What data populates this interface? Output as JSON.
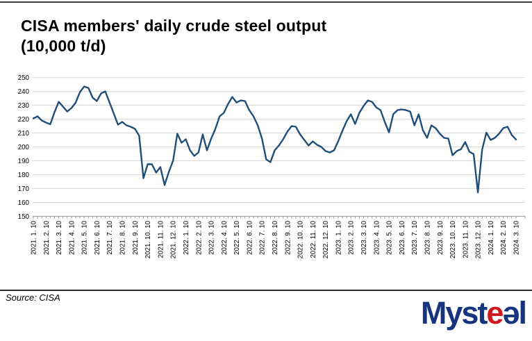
{
  "header": {
    "title_line1": "CISA members' daily crude steel output",
    "title_line2": "(10,000 t/d)"
  },
  "chart_data": {
    "type": "line",
    "title": "CISA members' daily crude steel output (10,000 t/d)",
    "xlabel": "",
    "ylabel": "",
    "ylim": [
      150,
      250
    ],
    "ytick_step": 10,
    "grid": true,
    "legend_position": "none",
    "points_per_month": 3,
    "line_color": "#1f4e79",
    "colors": {
      "grid": "#d9d9d9",
      "axis": "#999999",
      "label": "#000000"
    },
    "categories": [
      "2021. 1. 10",
      "2021. 2. 10",
      "2021. 3. 10",
      "2021. 4. 10",
      "2021. 5. 10",
      "2021. 6. 10",
      "2021. 7. 10",
      "2021. 8. 10",
      "2021. 9. 10",
      "2021. 10. 10",
      "2021. 11. 10",
      "2021. 12. 10",
      "2022. 1. 10",
      "2022. 2. 10",
      "2022. 3. 10",
      "2022. 4. 10",
      "2022. 5. 10",
      "2022. 6. 10",
      "2022. 7. 10",
      "2022. 8. 10",
      "2022. 9. 10",
      "2022. 10. 10",
      "2022. 11. 10",
      "2022. 12. 10",
      "2023. 1. 10",
      "2023. 2. 10",
      "2023. 3. 10",
      "2023. 4. 10",
      "2023. 5. 10",
      "2023. 6. 10",
      "2023. 7. 10",
      "2023. 8. 10",
      "2023. 9. 10",
      "2023. 10. 10",
      "2023. 11. 10",
      "2023. 12. 10",
      "2024. 1. 10",
      "2024. 2. 10",
      "2024. 3. 10"
    ],
    "values": [
      220.5,
      222,
      219,
      217.5,
      216.3,
      225,
      232.5,
      229,
      225.5,
      228,
      232,
      239.5,
      243.5,
      242.5,
      235.5,
      233,
      238.5,
      240,
      232,
      224,
      216,
      218,
      215.5,
      214.5,
      213,
      208,
      177.5,
      187.5,
      187.5,
      181.5,
      185.5,
      172.5,
      182,
      190,
      209.5,
      203,
      205.5,
      197.5,
      193.5,
      196,
      209,
      197.5,
      206,
      213,
      222,
      224.5,
      231,
      236,
      232,
      233.5,
      233,
      226.5,
      222,
      215.5,
      206,
      191,
      189,
      197.5,
      201,
      205.5,
      211,
      215,
      214.5,
      209,
      205,
      201,
      204,
      201.5,
      200,
      197,
      196,
      197.5,
      204,
      211.5,
      218.5,
      223.5,
      216.5,
      224.5,
      229.5,
      233.5,
      232.5,
      228.5,
      226.5,
      218,
      210.5,
      223.5,
      226.5,
      227,
      226.5,
      225.5,
      215.5,
      223.5,
      212,
      206.5,
      215.5,
      213.5,
      209.5,
      206.5,
      206,
      194,
      197,
      198.3,
      203.5,
      196.5,
      194.8,
      167.2,
      198,
      210.3,
      205,
      206.5,
      209.5,
      213.5,
      214.5,
      208.5,
      205.3
    ]
  },
  "footer": {
    "source": "Source: CISA",
    "logo": {
      "part1": "Myst",
      "part2": "e",
      "part3": "ə",
      "part4": "l",
      "navy": "#17357f",
      "red": "#d0191f"
    }
  }
}
